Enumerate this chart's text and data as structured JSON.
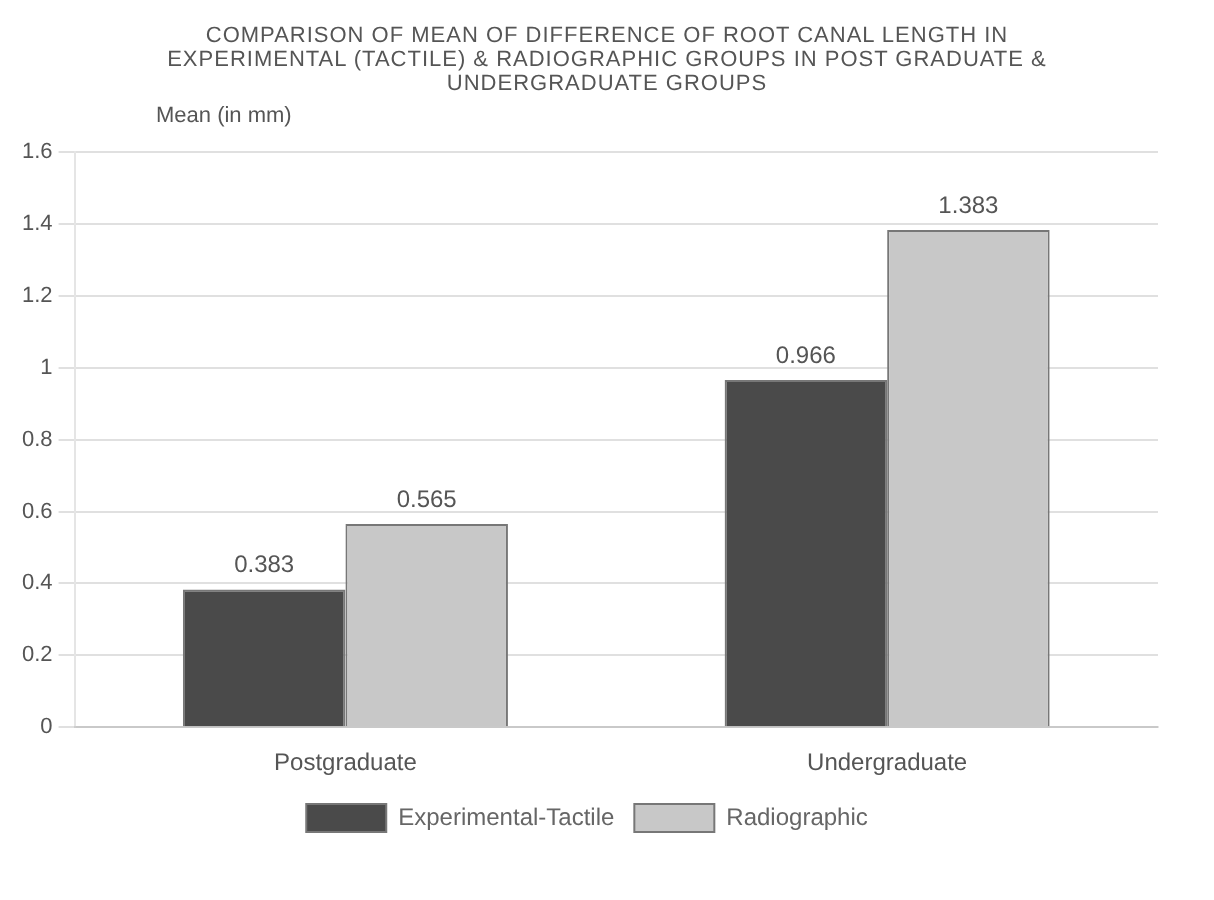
{
  "chart_data": {
    "type": "bar",
    "title": "COMPARISON OF MEAN OF DIFFERENCE OF ROOT CANAL LENGTH IN EXPERIMENTAL (TACTILE) & RADIOGRAPHIC GROUPS IN POST GRADUATE & UNDERGRADUATE GROUPS",
    "ylabel": "Mean (in mm)",
    "categories": [
      "Postgraduate",
      "Undergraduate"
    ],
    "series": [
      {
        "name": "Experimental-Tactile",
        "color": "#4a4a4a",
        "values": [
          0.383,
          0.966
        ]
      },
      {
        "name": "Radiographic",
        "color": "#c8c8c8",
        "values": [
          0.565,
          1.383
        ]
      }
    ],
    "ylim": [
      0,
      1.6
    ],
    "yticks": [
      0,
      0.2,
      0.4,
      0.6,
      0.8,
      1,
      1.2,
      1.4,
      1.6
    ],
    "grid": "y",
    "legend": "bottom",
    "data_labels": true
  }
}
